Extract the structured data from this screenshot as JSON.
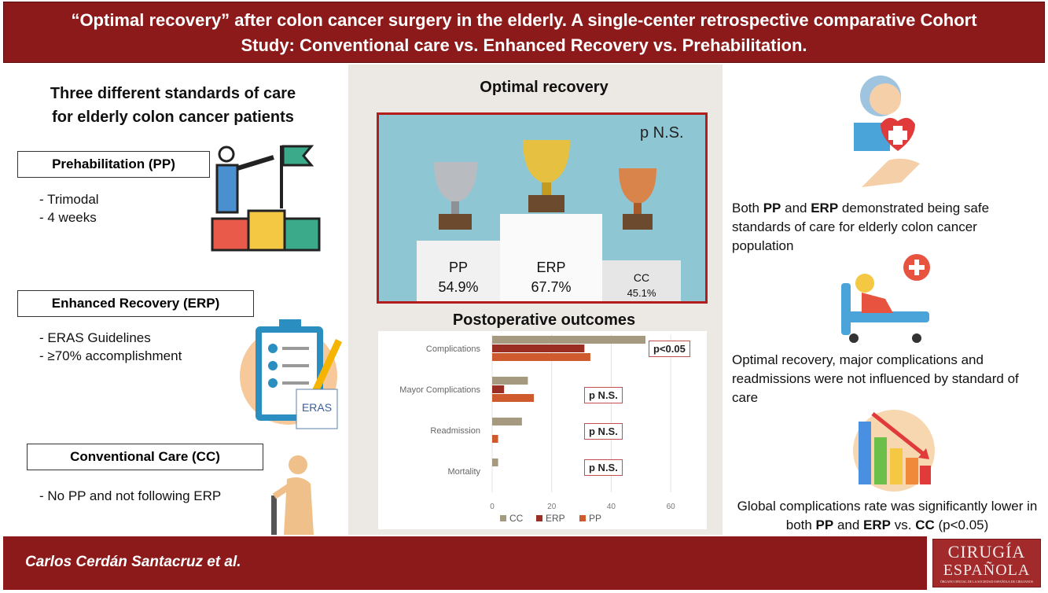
{
  "header": {
    "title_line1": "“Optimal recovery” after colon cancer surgery in the elderly. A single-center retrospective comparative Cohort",
    "title_line2": "Study: Conventional care vs. Enhanced Recovery vs. Prehabilitation."
  },
  "left": {
    "heading_line1": "Three different standards of care",
    "heading_line2": "for elderly colon cancer patients",
    "groups": [
      {
        "label": "Prehabilitation (PP)",
        "items": [
          "-  Trimodal",
          "-  4 weeks"
        ]
      },
      {
        "label": "Enhanced Recovery (ERP)",
        "items": [
          "-  ERAS Guidelines",
          "-  ≥70% accomplishment"
        ]
      },
      {
        "label": "Conventional Care (CC)",
        "items": [
          "-  No PP and not following ERP"
        ]
      }
    ],
    "eras_logo": "ERAS"
  },
  "center": {
    "optimal_title": "Optimal recovery",
    "p_value": "p N.S.",
    "podium": [
      {
        "group": "PP",
        "value": "54.9%",
        "rank": "2"
      },
      {
        "group": "ERP",
        "value": "67.7%",
        "rank": "1"
      },
      {
        "group": "CC",
        "value": "45.1%",
        "rank": "3"
      }
    ],
    "outcomes_title": "Postoperative outcomes"
  },
  "chart_data": {
    "type": "bar",
    "orientation": "horizontal",
    "categories": [
      "Complications",
      "Mayor Complications",
      "Readmission",
      "Mortality"
    ],
    "series": [
      {
        "name": "CC",
        "values": [
          51.5,
          12,
          10,
          2
        ],
        "color": "#a59a80"
      },
      {
        "name": "ERP",
        "values": [
          31,
          4,
          0,
          0
        ],
        "color": "#9b2e22"
      },
      {
        "name": "PP",
        "values": [
          33,
          14,
          2,
          0
        ],
        "color": "#cf5a2e"
      }
    ],
    "xlim": [
      0,
      70
    ],
    "xticks": [
      "0",
      "20",
      "40",
      "60"
    ],
    "annotations": [
      "p<0.05",
      "p N.S.",
      "p N.S.",
      "p N.S."
    ],
    "legend": "bottom",
    "grid": true
  },
  "right": {
    "text1": [
      {
        "t": "Both "
      },
      {
        "t": "PP",
        "b": true
      },
      {
        "t": " and "
      },
      {
        "t": "ERP",
        "b": true
      },
      {
        "t": " demonstrated being safe standards of care for elderly colon cancer population"
      }
    ],
    "text2": "Optimal recovery, major complications and readmissions were not influenced by standard of care",
    "text3": [
      {
        "t": "Global complications rate was significantly lower in both "
      },
      {
        "t": "PP",
        "b": true
      },
      {
        "t": " and "
      },
      {
        "t": "ERP",
        "b": true
      },
      {
        "t": " vs. "
      },
      {
        "t": "CC",
        "b": true
      },
      {
        "t": " (p<0.05)"
      }
    ]
  },
  "footer": {
    "authors": "Carlos Cerdán Santacruz et al."
  },
  "logo": {
    "line1": "CIRUGÍA",
    "line2": "ESPAÑOLA",
    "line3": "ÓRGANO OFICIAL DE LA SOCIEDAD ESPAÑOLA DE CIRUJANOS"
  }
}
